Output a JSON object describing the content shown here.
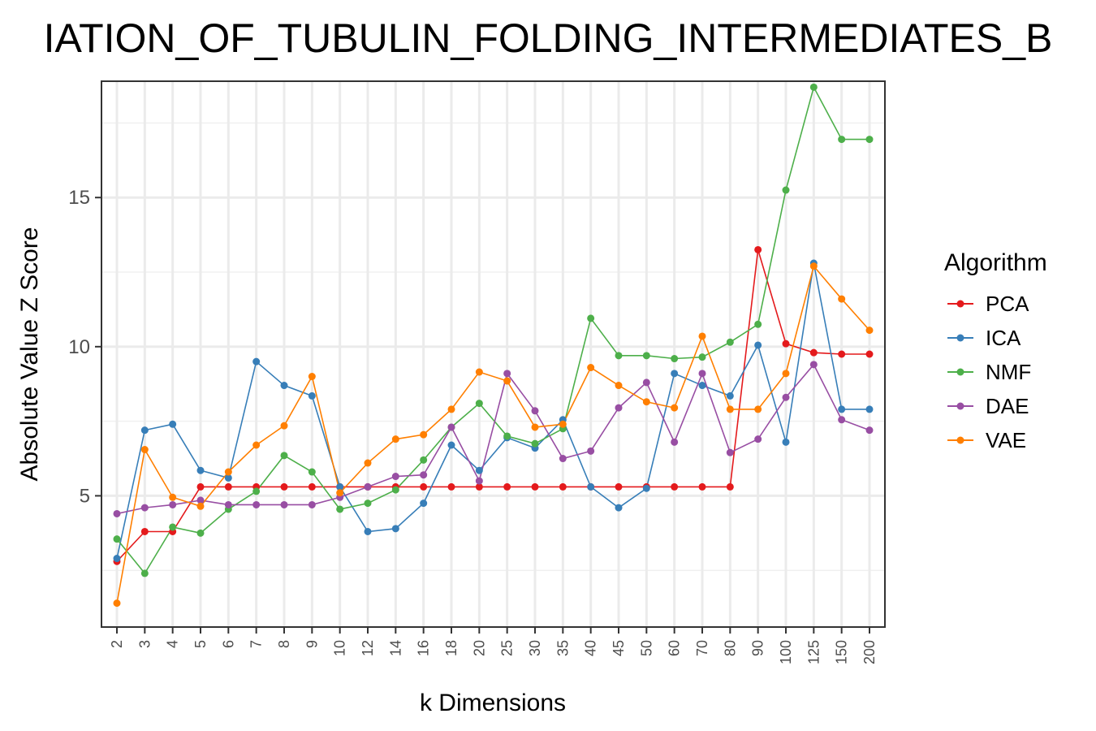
{
  "chart_data": {
    "type": "line",
    "title": "IATION_OF_TUBULIN_FOLDING_INTERMEDIATES_B",
    "xlabel": "k Dimensions",
    "ylabel": "Absolute Value Z Score",
    "ylim": [
      0.6,
      18.9
    ],
    "yticks": [
      5,
      10,
      15
    ],
    "grid": true,
    "legend_title": "Algorithm",
    "legend_position": "right",
    "categories": [
      "2",
      "3",
      "4",
      "5",
      "6",
      "7",
      "8",
      "9",
      "10",
      "12",
      "14",
      "16",
      "18",
      "20",
      "25",
      "30",
      "35",
      "40",
      "45",
      "50",
      "60",
      "70",
      "80",
      "90",
      "100",
      "125",
      "150",
      "200"
    ],
    "series": [
      {
        "name": "PCA",
        "color": "#e41a1c",
        "values": [
          2.8,
          3.8,
          3.8,
          5.3,
          5.3,
          5.3,
          5.3,
          5.3,
          5.3,
          5.3,
          5.3,
          5.3,
          5.3,
          5.3,
          5.3,
          5.3,
          5.3,
          5.3,
          5.3,
          5.3,
          5.3,
          5.3,
          5.3,
          13.25,
          10.1,
          9.8,
          9.75,
          9.75
        ]
      },
      {
        "name": "ICA",
        "color": "#377eb8",
        "values": [
          2.9,
          7.2,
          7.4,
          5.85,
          5.6,
          9.5,
          8.7,
          8.35,
          5.3,
          3.8,
          3.9,
          4.75,
          6.7,
          5.85,
          6.95,
          6.6,
          7.55,
          5.3,
          4.6,
          5.25,
          9.1,
          8.7,
          8.35,
          10.05,
          6.8,
          12.8,
          7.9,
          7.9
        ]
      },
      {
        "name": "NMF",
        "color": "#4daf4a",
        "values": [
          3.55,
          2.4,
          3.95,
          3.75,
          4.55,
          5.15,
          6.35,
          5.8,
          4.55,
          4.75,
          5.2,
          6.2,
          7.3,
          8.1,
          7.0,
          6.75,
          7.25,
          10.95,
          9.7,
          9.7,
          9.6,
          9.65,
          10.15,
          10.75,
          15.25,
          18.7,
          16.95,
          16.95
        ]
      },
      {
        "name": "DAE",
        "color": "#984ea3",
        "values": [
          4.4,
          4.6,
          4.7,
          4.85,
          4.7,
          4.7,
          4.7,
          4.7,
          4.95,
          5.3,
          5.65,
          5.7,
          7.3,
          5.5,
          9.1,
          7.85,
          6.25,
          6.5,
          7.95,
          8.8,
          6.8,
          9.1,
          6.45,
          6.9,
          8.3,
          9.4,
          7.55,
          7.2
        ]
      },
      {
        "name": "VAE",
        "color": "#ff7f00",
        "values": [
          1.4,
          6.55,
          4.95,
          4.65,
          5.8,
          6.7,
          7.35,
          9.0,
          5.1,
          6.1,
          6.9,
          7.05,
          7.9,
          9.15,
          8.85,
          7.3,
          7.4,
          9.3,
          8.7,
          8.15,
          7.95,
          10.35,
          7.9,
          7.9,
          9.1,
          12.7,
          11.6,
          10.55
        ]
      }
    ]
  }
}
